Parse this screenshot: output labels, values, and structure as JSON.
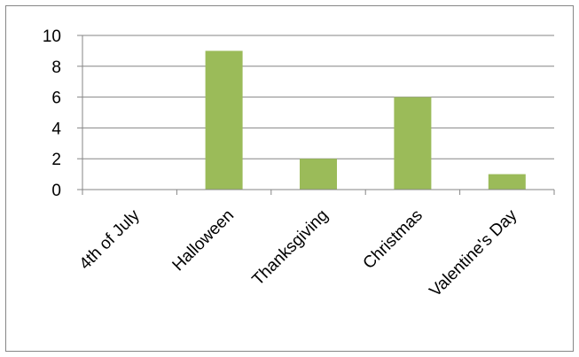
{
  "chart_data": {
    "type": "bar",
    "categories": [
      "4th of July",
      "Halloween",
      "Thanksgiving",
      "Christmas",
      "Valentine's Day"
    ],
    "values": [
      0,
      9,
      2,
      6,
      1
    ],
    "ylim": [
      0,
      10
    ],
    "yticks": [
      0,
      2,
      4,
      6,
      8,
      10
    ],
    "grid": true,
    "legend": false,
    "colors": {
      "bar": "#9bbb59",
      "grid": "#868686",
      "axis": "#868686"
    }
  }
}
